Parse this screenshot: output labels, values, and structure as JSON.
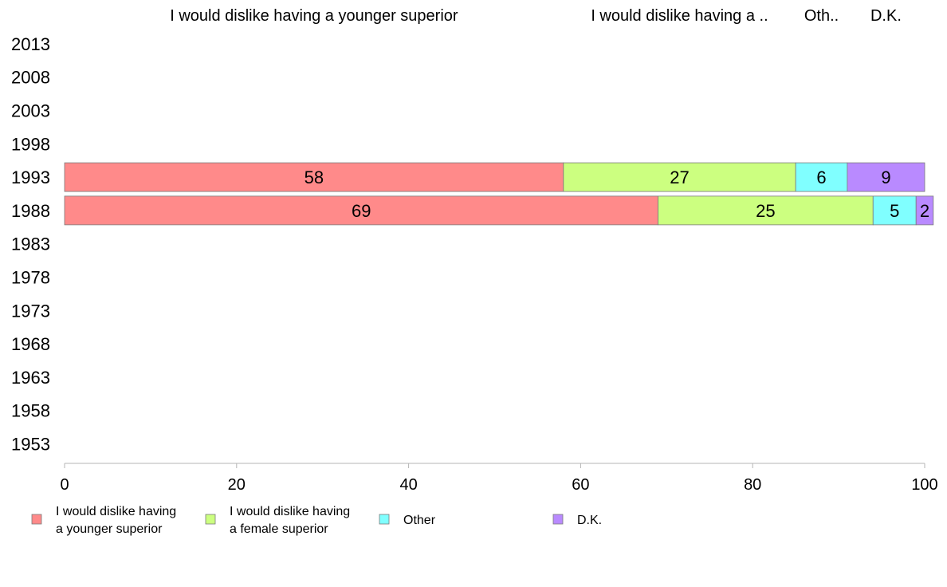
{
  "chart_data": {
    "type": "bar",
    "orientation": "horizontal",
    "stacked": true,
    "categories": [
      "2013",
      "2008",
      "2003",
      "1998",
      "1993",
      "1988",
      "1983",
      "1978",
      "1973",
      "1968",
      "1963",
      "1958",
      "1953"
    ],
    "series": [
      {
        "name": "I would dislike having a younger superior",
        "header": "I would dislike having a younger superior",
        "legend_lines": [
          "I would dislike having",
          "a younger superior"
        ],
        "color": "#ff8a8a",
        "values": [
          null,
          null,
          null,
          null,
          58,
          69,
          null,
          null,
          null,
          null,
          null,
          null,
          null
        ]
      },
      {
        "name": "I would dislike having a female superior",
        "header": "I would dislike having a ..",
        "legend_lines": [
          "I would dislike having",
          "a female superior"
        ],
        "color": "#ccff80",
        "values": [
          null,
          null,
          null,
          null,
          27,
          25,
          null,
          null,
          null,
          null,
          null,
          null,
          null
        ]
      },
      {
        "name": "Other",
        "header": "Oth..",
        "legend_lines": [
          "Other"
        ],
        "color": "#80ffff",
        "values": [
          null,
          null,
          null,
          null,
          6,
          5,
          null,
          null,
          null,
          null,
          null,
          null,
          null
        ]
      },
      {
        "name": "D.K.",
        "header": "D.K.",
        "legend_lines": [
          "D.K."
        ],
        "color": "#b98aff",
        "values": [
          null,
          null,
          null,
          null,
          9,
          2,
          null,
          null,
          null,
          null,
          null,
          null,
          null
        ]
      }
    ],
    "xlim": [
      0,
      100
    ],
    "xticks": [
      0,
      20,
      40,
      60,
      80,
      100
    ],
    "grid": false,
    "legend_position": "bottom",
    "title": "",
    "xlabel": "",
    "ylabel": ""
  }
}
